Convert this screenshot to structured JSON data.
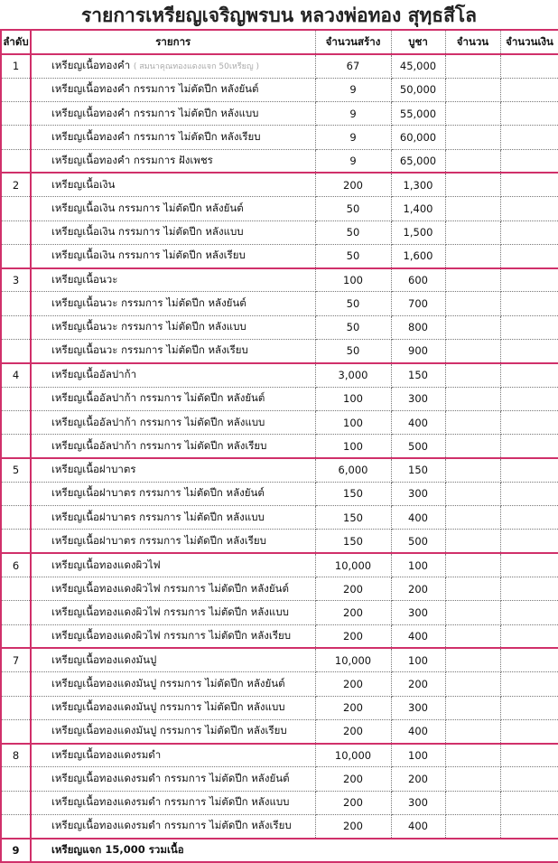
{
  "title": "รายการเหรียญเจริญพรบน หลวงพ่อทอง สุทฺธสีโล",
  "headers": [
    "ลำดับ",
    "รายการ",
    "จำนวนสร้าง",
    "บูชา",
    "จำนวน",
    "จำนวนเงิน"
  ],
  "colors": {
    "accent": "#d0306a"
  },
  "groups": [
    {
      "no": "1",
      "rows": [
        {
          "name": "เหรียญเนื้อทองคำ",
          "note": "( สมนาคุณทองแดงแจก 50เหรียญ )",
          "qty": "67",
          "price": "45,000"
        },
        {
          "name": "เหรียญเนื้อทองคำ กรรมการ ไม่ตัดปีก หลังยันต์",
          "qty": "9",
          "price": "50,000"
        },
        {
          "name": "เหรียญเนื้อทองคำ กรรมการ ไม่ตัดปีก หลังแบบ",
          "qty": "9",
          "price": "55,000"
        },
        {
          "name": "เหรียญเนื้อทองคำ กรรมการ ไม่ตัดปีก หลังเรียบ",
          "qty": "9",
          "price": "60,000"
        },
        {
          "name": "เหรียญเนื้อทองคำ กรรมการ ฝังเพชร",
          "qty": "9",
          "price": "65,000"
        }
      ]
    },
    {
      "no": "2",
      "rows": [
        {
          "name": "เหรียญเนื้อเงิน",
          "qty": "200",
          "price": "1,300"
        },
        {
          "name": "เหรียญเนื้อเงิน กรรมการ ไม่ตัดปีก หลังยันต์",
          "qty": "50",
          "price": "1,400"
        },
        {
          "name": "เหรียญเนื้อเงิน กรรมการ ไม่ตัดปีก หลังแบบ",
          "qty": "50",
          "price": "1,500"
        },
        {
          "name": "เหรียญเนื้อเงิน กรรมการ ไม่ตัดปีก หลังเรียบ",
          "qty": "50",
          "price": "1,600"
        }
      ]
    },
    {
      "no": "3",
      "rows": [
        {
          "name": "เหรียญเนื้อนวะ",
          "qty": "100",
          "price": "600"
        },
        {
          "name": "เหรียญเนื้อนวะ กรรมการ ไม่ตัดปีก หลังยันต์",
          "qty": "50",
          "price": "700"
        },
        {
          "name": "เหรียญเนื้อนวะ กรรมการ ไม่ตัดปีก หลังแบบ",
          "qty": "50",
          "price": "800"
        },
        {
          "name": "เหรียญเนื้อนวะ กรรมการ ไม่ตัดปีก หลังเรียบ",
          "qty": "50",
          "price": "900"
        }
      ]
    },
    {
      "no": "4",
      "rows": [
        {
          "name": "เหรียญเนื้ออัลปาก้า",
          "qty": "3,000",
          "price": "150"
        },
        {
          "name": "เหรียญเนื้ออัลปาก้า กรรมการ ไม่ตัดปีก หลังยันต์",
          "qty": "100",
          "price": "300"
        },
        {
          "name": "เหรียญเนื้ออัลปาก้า กรรมการ ไม่ตัดปีก หลังแบบ",
          "qty": "100",
          "price": "400"
        },
        {
          "name": "เหรียญเนื้ออัลปาก้า กรรมการ ไม่ตัดปีก หลังเรียบ",
          "qty": "100",
          "price": "500"
        }
      ]
    },
    {
      "no": "5",
      "rows": [
        {
          "name": "เหรียญเนื้อฝาบาตร",
          "qty": "6,000",
          "price": "150"
        },
        {
          "name": "เหรียญเนื้อฝาบาตร กรรมการ ไม่ตัดปีก หลังยันต์",
          "qty": "150",
          "price": "300"
        },
        {
          "name": "เหรียญเนื้อฝาบาตร กรรมการ ไม่ตัดปีก หลังแบบ",
          "qty": "150",
          "price": "400"
        },
        {
          "name": "เหรียญเนื้อฝาบาตร กรรมการ ไม่ตัดปีก หลังเรียบ",
          "qty": "150",
          "price": "500"
        }
      ]
    },
    {
      "no": "6",
      "rows": [
        {
          "name": "เหรียญเนื้อทองแดงผิวไฟ",
          "qty": "10,000",
          "price": "100"
        },
        {
          "name": "เหรียญเนื้อทองแดงผิวไฟ กรรมการ ไม่ตัดปีก หลังยันต์",
          "qty": "200",
          "price": "200"
        },
        {
          "name": "เหรียญเนื้อทองแดงผิวไฟ กรรมการ ไม่ตัดปีก หลังแบบ",
          "qty": "200",
          "price": "300"
        },
        {
          "name": "เหรียญเนื้อทองแดงผิวไฟ กรรมการ ไม่ตัดปีก หลังเรียบ",
          "qty": "200",
          "price": "400"
        }
      ]
    },
    {
      "no": "7",
      "rows": [
        {
          "name": "เหรียญเนื้อทองแดงมันปู",
          "qty": "10,000",
          "price": "100"
        },
        {
          "name": "เหรียญเนื้อทองแดงมันปู กรรมการ ไม่ตัดปีก หลังยันต์",
          "qty": "200",
          "price": "200"
        },
        {
          "name": "เหรียญเนื้อทองแดงมันปู กรรมการ ไม่ตัดปีก หลังแบบ",
          "qty": "200",
          "price": "300"
        },
        {
          "name": "เหรียญเนื้อทองแดงมันปู กรรมการ ไม่ตัดปีก หลังเรียบ",
          "qty": "200",
          "price": "400"
        }
      ]
    },
    {
      "no": "8",
      "rows": [
        {
          "name": "เหรียญเนื้อทองแดงรมดำ",
          "qty": "10,000",
          "price": "100"
        },
        {
          "name": "เหรียญเนื้อทองแดงรมดำ กรรมการ ไม่ตัดปีก หลังยันต์",
          "qty": "200",
          "price": "200"
        },
        {
          "name": "เหรียญเนื้อทองแดงรมดำ กรรมการ ไม่ตัดปีก หลังแบบ",
          "qty": "200",
          "price": "300"
        },
        {
          "name": "เหรียญเนื้อทองแดงรมดำ กรรมการ ไม่ตัดปีก หลังเรียบ",
          "qty": "200",
          "price": "400"
        }
      ]
    }
  ],
  "last": {
    "no": "9",
    "text": "เหรียญแจก 15,000 รวมเนื้อ"
  }
}
